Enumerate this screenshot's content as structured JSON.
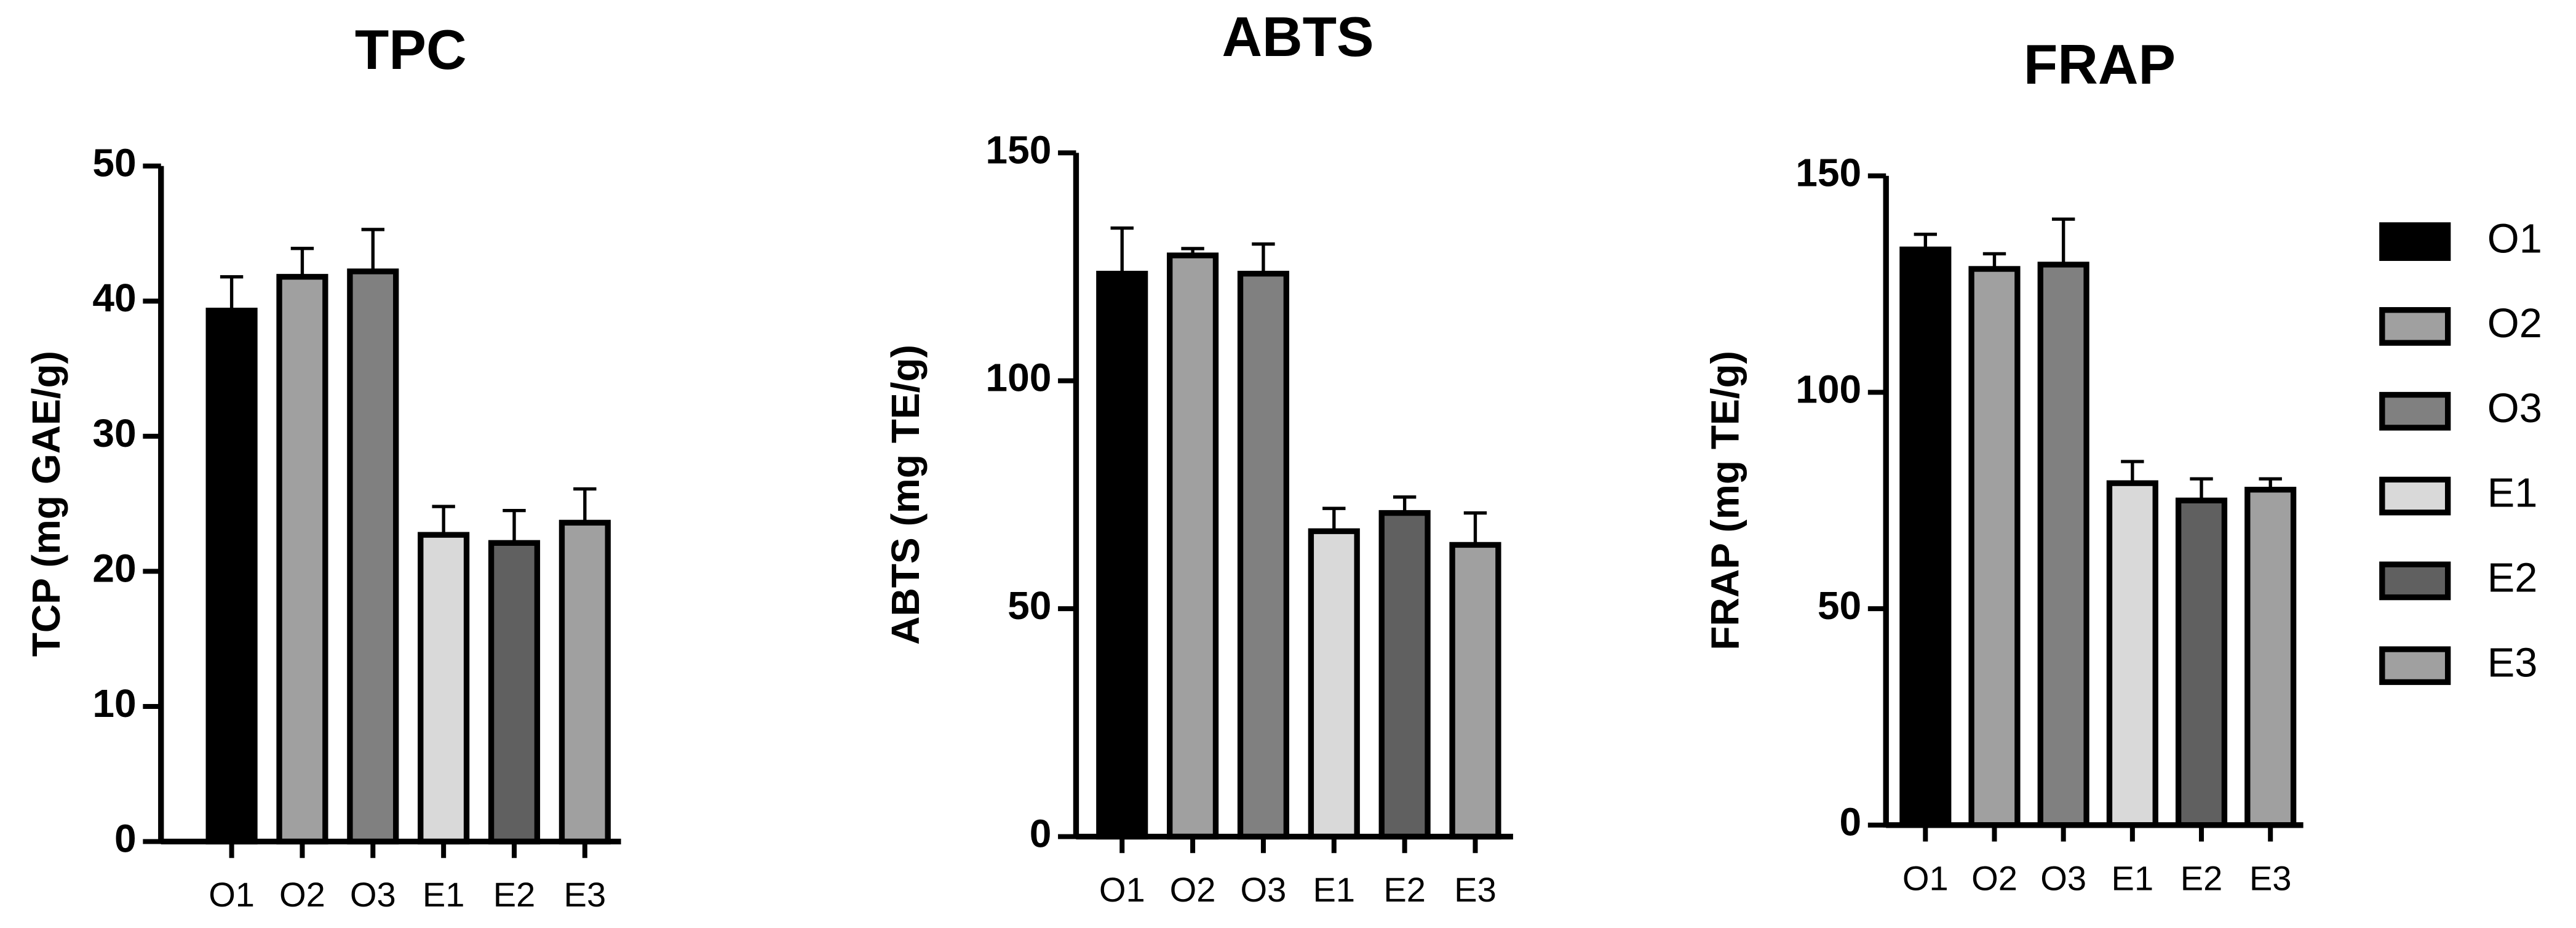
{
  "chart_data": [
    {
      "type": "bar",
      "title": "TPC",
      "y_label": "TCP (mg GAE/g)",
      "categories": [
        "O1",
        "O2",
        "O3",
        "E1",
        "E2",
        "E3"
      ],
      "values": [
        39.3,
        41.8,
        42.2,
        22.7,
        22.1,
        23.6
      ],
      "errors": [
        2.5,
        2.1,
        3.1,
        2.1,
        2.4,
        2.5
      ],
      "colors": [
        "#000000",
        "#a0a0a0",
        "#808080",
        "#d9d9d9",
        "#606060",
        "#a0a0a0"
      ],
      "ylim": [
        0,
        50
      ],
      "yticks": [
        0,
        10,
        20,
        30,
        40,
        50
      ]
    },
    {
      "type": "bar",
      "title": "ABTS",
      "y_label": "ABTS (mg TE/g)",
      "categories": [
        "O1",
        "O2",
        "O3",
        "E1",
        "E2",
        "E3"
      ],
      "values": [
        123.5,
        127.5,
        123.5,
        67,
        71,
        64
      ],
      "errors": [
        10,
        1.5,
        6.5,
        5,
        3.5,
        7
      ],
      "colors": [
        "#000000",
        "#a0a0a0",
        "#808080",
        "#d9d9d9",
        "#606060",
        "#a0a0a0"
      ],
      "ylim": [
        0,
        150
      ],
      "yticks": [
        0,
        50,
        100,
        150
      ]
    },
    {
      "type": "bar",
      "title": "FRAP",
      "y_label": "FRAP (mg TE/g)",
      "categories": [
        "O1",
        "O2",
        "O3",
        "E1",
        "E2",
        "E3"
      ],
      "values": [
        133,
        128.5,
        129.5,
        79,
        75,
        77.5
      ],
      "errors": [
        3.5,
        3.5,
        10.5,
        5,
        5,
        2.5
      ],
      "colors": [
        "#000000",
        "#a0a0a0",
        "#808080",
        "#d9d9d9",
        "#606060",
        "#a0a0a0"
      ],
      "ylim": [
        0,
        150
      ],
      "yticks": [
        0,
        50,
        100,
        150
      ],
      "legend": "right"
    }
  ]
}
